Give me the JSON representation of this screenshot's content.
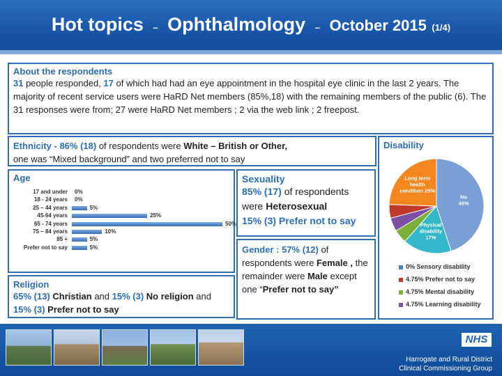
{
  "header": {
    "title_part1": "Hot topics",
    "sep1": "–",
    "title_part2": "Ophthalmology",
    "sep2": "–",
    "title_part3": "October 2015",
    "page": "(1/4)"
  },
  "about": {
    "heading": "About the respondents",
    "n1": "31",
    "t1": " people responded, ",
    "n2": "17",
    "t2": " of which had had an eye appointment in the hospital eye clinic in the last 2 years. The majority of recent service users were HaRD Net members (85%,18) with the remaining members of the public (6). The 31 responses were from; 27 were HaRD Net members ; 2 via the web link ; 2 freepost."
  },
  "ethnicity": {
    "lead": "Ethnicity  - 86% (18)",
    "t1": " of respondents were ",
    "bold": "White – British or Other,",
    "t2": "one was “Mixed background” and two preferred not to say"
  },
  "age": {
    "heading": "Age",
    "rows": [
      {
        "label": "17 and under",
        "value": 0,
        "display": "0%"
      },
      {
        "label": "18 - 24 years",
        "value": 0,
        "display": "0%"
      },
      {
        "label": "25 – 44 years",
        "value": 5,
        "display": "5%"
      },
      {
        "label": "45-64 years",
        "value": 25,
        "display": "25%"
      },
      {
        "label": "65 - 74 years",
        "value": 50,
        "display": "50%"
      },
      {
        "label": "75 – 84 years",
        "value": 10,
        "display": "10%"
      },
      {
        "label": "85 +",
        "value": 5,
        "display": "5%"
      },
      {
        "label": "Prefer not to say",
        "value": 5,
        "display": "5%"
      }
    ]
  },
  "religion": {
    "heading": "Religion",
    "p1": "65% (13)",
    "b1": " Christian",
    "t1": " and ",
    "p2": "15% (3)",
    "b2": " No religion",
    "t2": " and",
    "p3": "15% (3)",
    "b3": " Prefer not to say"
  },
  "sexuality": {
    "heading": "Sexuality",
    "p1": "85% (17)",
    "t1": " of respondents were ",
    "b1": "Heterosexual",
    "p2": "15% (3)",
    "b2": " Prefer not to say"
  },
  "gender": {
    "lead": "Gender : 57% (12)",
    "t1": " of respondents were ",
    "b1": "Female ,",
    "t2": " the remainder were ",
    "b2": "Male",
    "t3": " except one “",
    "b3": "Prefer not to say”"
  },
  "disability": {
    "heading": "Disability",
    "slices": [
      {
        "label": "No",
        "display": "46%",
        "value": 46,
        "color": "#7a9fd4"
      },
      {
        "label": "Physical disability",
        "display": "17%",
        "value": 17,
        "color": "#33b8c9"
      },
      {
        "label": "",
        "display": "",
        "value": 4.75,
        "color": "#7cae3a"
      },
      {
        "label": "",
        "display": "",
        "value": 4.75,
        "color": "#7b4fa3"
      },
      {
        "label": "",
        "display": "",
        "value": 4.75,
        "color": "#c0392b"
      },
      {
        "label": "Long term health condition",
        "display": "25%",
        "value": 25,
        "color": "#f2861f"
      }
    ],
    "legend": [
      {
        "text": "0% Sensory disability",
        "color": "#4f81bd"
      },
      {
        "text": "4.75% Prefer not to say",
        "color": "#c0392b"
      },
      {
        "text": "4.75% Mental disability",
        "color": "#7cae3a"
      },
      {
        "text": "4.75% Learning disability",
        "color": "#7b4fa3"
      }
    ]
  },
  "footer": {
    "nhs": "NHS",
    "org_line1": "Harrogate and Rural District",
    "org_line2": "Clinical Commissioning Group"
  }
}
